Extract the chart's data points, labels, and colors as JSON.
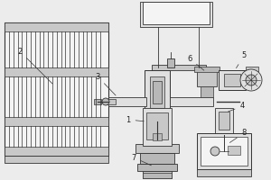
{
  "bg_color": "#ececec",
  "line_color": "#333333",
  "label_color": "#222222",
  "fig_width": 3.0,
  "fig_height": 2.0,
  "dpi": 100,
  "gray1": "#d0d0d0",
  "gray2": "#b8b8b8",
  "gray3": "#c8c8c8",
  "gray4": "#e0e0e0",
  "white": "#f4f4f4"
}
